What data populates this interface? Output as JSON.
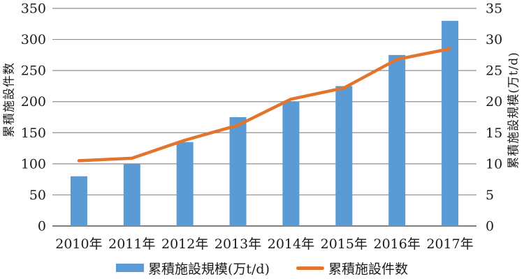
{
  "chart_data": {
    "type": "combo",
    "title": "",
    "categories": [
      "2010年",
      "2011年",
      "2012年",
      "2013年",
      "2014年",
      "2015年",
      "2016年",
      "2017年"
    ],
    "series": [
      {
        "name": "累積施設規模(万t/d)",
        "type": "bar",
        "axis": "right",
        "color": "#5B9BD5",
        "values": [
          8,
          10,
          13.5,
          17.5,
          20,
          22.5,
          27.5,
          33
        ]
      },
      {
        "name": "累積施設件数",
        "type": "line",
        "axis": "left",
        "color": "#E2752E",
        "values": [
          105,
          109,
          138,
          162,
          204,
          222,
          268,
          285
        ]
      }
    ],
    "axes": {
      "left": {
        "label": "累積施設件数",
        "min": 0,
        "max": 350,
        "step": 50
      },
      "right": {
        "label": "累積施設規模(万t/d)",
        "min": 0,
        "max": 35,
        "step": 5
      }
    },
    "grid": true,
    "legend_position": "bottom",
    "colors": {
      "grid": "#8f8f8f",
      "baseline": "#6e6e6e",
      "text": "#1a1a1a",
      "background": "#ffffff"
    }
  }
}
